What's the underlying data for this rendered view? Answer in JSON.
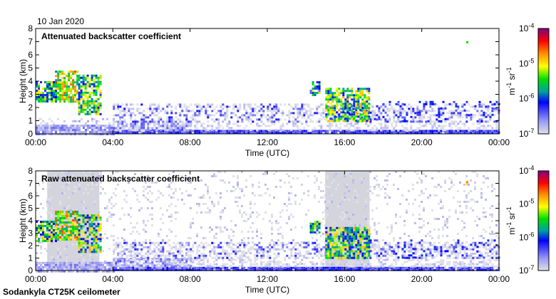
{
  "date_label": "10 Jan 2020",
  "footer_label": "Sodankyla CT25K ceilometer",
  "chart_data": [
    {
      "type": "heatmap",
      "title": "Attenuated backscatter coefficient",
      "xlabel": "Time (UTC)",
      "ylabel": "Height (km)",
      "xlim_hours": [
        0,
        24
      ],
      "ylim": [
        0,
        8
      ],
      "x_ticks": [
        "00:00",
        "04:00",
        "08:00",
        "12:00",
        "16:00",
        "20:00",
        "00:00"
      ],
      "y_ticks": [
        "0",
        "1",
        "2",
        "3",
        "4",
        "5",
        "6",
        "7",
        "8"
      ],
      "colorbar": {
        "label_base": "m",
        "label_exp1": "-1",
        "label_mid": " sr",
        "label_exp2": "-1",
        "scale": "log",
        "range_log10": [
          -7,
          -4
        ],
        "ticks": [
          {
            "base": "10",
            "exp": "-4"
          },
          {
            "base": "10",
            "exp": "-5"
          },
          {
            "base": "10",
            "exp": "-6"
          },
          {
            "base": "10",
            "exp": "-7"
          }
        ]
      },
      "features": [
        {
          "t": [
            0,
            4
          ],
          "h": [
            0,
            0.7
          ],
          "log10": -6.7,
          "density": 0.9
        },
        {
          "t": [
            0,
            4
          ],
          "h": [
            0.7,
            1.2
          ],
          "log10": -6.9,
          "density": 0.25
        },
        {
          "t": [
            4,
            24
          ],
          "h": [
            0,
            0.3
          ],
          "log10": -6.3,
          "density": 0.95
        },
        {
          "t": [
            4,
            8
          ],
          "h": [
            0.3,
            1.0
          ],
          "log10": -6.6,
          "density": 0.7
        },
        {
          "t": [
            4,
            24
          ],
          "h": [
            0.3,
            2.3
          ],
          "log10": -7.0,
          "density": 0.35
        },
        {
          "t": [
            4,
            24
          ],
          "h": [
            1.0,
            2.3
          ],
          "log10": -6.4,
          "density": 0.15
        },
        {
          "t": [
            0,
            1.0
          ],
          "h": [
            2.4,
            4.0
          ],
          "log10": -5.6,
          "density": 0.8
        },
        {
          "t": [
            1.0,
            2.2
          ],
          "h": [
            2.4,
            4.8
          ],
          "log10": -5.2,
          "density": 0.75
        },
        {
          "t": [
            2.2,
            3.4
          ],
          "h": [
            1.5,
            4.5
          ],
          "log10": -5.5,
          "density": 0.7
        },
        {
          "t": [
            14.2,
            14.7
          ],
          "h": [
            3.0,
            4.0
          ],
          "log10": -5.8,
          "density": 0.7
        },
        {
          "t": [
            15.0,
            17.3
          ],
          "h": [
            1.0,
            3.5
          ],
          "log10": -5.5,
          "density": 0.75
        },
        {
          "t": [
            17.3,
            24
          ],
          "h": [
            1.0,
            2.5
          ],
          "log10": -6.2,
          "density": 0.12
        },
        {
          "t": [
            22.3,
            22.4
          ],
          "h": [
            6.9,
            7.2
          ],
          "log10": -5.0,
          "density": 0.9
        }
      ]
    },
    {
      "type": "heatmap",
      "title": "Raw attenuated backscatter coefficient",
      "xlabel": "Time (UTC)",
      "ylabel": "Height (km)",
      "xlim_hours": [
        0,
        24
      ],
      "ylim": [
        0,
        8
      ],
      "x_ticks": [
        "00:00",
        "04:00",
        "08:00",
        "12:00",
        "16:00",
        "20:00",
        "00:00"
      ],
      "y_ticks": [
        "0",
        "1",
        "2",
        "3",
        "4",
        "5",
        "6",
        "7",
        "8"
      ],
      "colorbar": {
        "label_base": "m",
        "label_exp1": "-1",
        "label_mid": " sr",
        "label_exp2": "-1",
        "scale": "log",
        "range_log10": [
          -7,
          -4
        ],
        "ticks": [
          {
            "base": "10",
            "exp": "-4"
          },
          {
            "base": "10",
            "exp": "-5"
          },
          {
            "base": "10",
            "exp": "-6"
          },
          {
            "base": "10",
            "exp": "-7"
          }
        ]
      },
      "shaded_periods": [
        [
          0.6,
          3.3
        ],
        [
          15.0,
          17.3
        ]
      ],
      "features": [
        {
          "t": [
            0,
            24
          ],
          "h": [
            0,
            8
          ],
          "log10": -7.0,
          "density": 0.12
        },
        {
          "t": [
            0,
            4
          ],
          "h": [
            0,
            0.7
          ],
          "log10": -6.7,
          "density": 0.9
        },
        {
          "t": [
            4,
            24
          ],
          "h": [
            0,
            0.3
          ],
          "log10": -6.3,
          "density": 0.95
        },
        {
          "t": [
            4,
            8
          ],
          "h": [
            0.3,
            1.0
          ],
          "log10": -6.6,
          "density": 0.7
        },
        {
          "t": [
            4,
            24
          ],
          "h": [
            0.3,
            2.3
          ],
          "log10": -7.0,
          "density": 0.4
        },
        {
          "t": [
            4,
            24
          ],
          "h": [
            1.0,
            2.3
          ],
          "log10": -6.4,
          "density": 0.15
        },
        {
          "t": [
            0,
            1.0
          ],
          "h": [
            2.4,
            4.0
          ],
          "log10": -5.6,
          "density": 0.8
        },
        {
          "t": [
            1.0,
            2.2
          ],
          "h": [
            2.4,
            4.8
          ],
          "log10": -5.2,
          "density": 0.75
        },
        {
          "t": [
            2.2,
            3.4
          ],
          "h": [
            1.5,
            4.5
          ],
          "log10": -5.5,
          "density": 0.7
        },
        {
          "t": [
            14.2,
            14.7
          ],
          "h": [
            3.0,
            4.0
          ],
          "log10": -5.8,
          "density": 0.7
        },
        {
          "t": [
            15.0,
            17.3
          ],
          "h": [
            1.0,
            3.5
          ],
          "log10": -5.5,
          "density": 0.75
        },
        {
          "t": [
            17.3,
            24
          ],
          "h": [
            1.0,
            2.5
          ],
          "log10": -6.2,
          "density": 0.12
        },
        {
          "t": [
            22.3,
            22.4
          ],
          "h": [
            6.9,
            7.2
          ],
          "log10": -5.0,
          "density": 0.9
        }
      ]
    }
  ]
}
